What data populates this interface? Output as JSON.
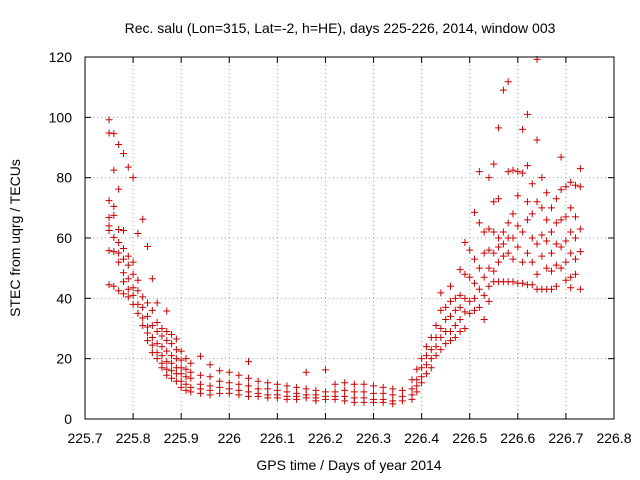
{
  "chart_data": {
    "type": "scatter",
    "title": "Rec. salu (Lon=315, Lat=-2, h=HE), days 225-226, 2014, window 003",
    "xlabel": "GPS time / Days of year 2014",
    "ylabel": "STEC from uqrg / TECUs",
    "xlim": [
      225.7,
      226.8
    ],
    "ylim": [
      0,
      120
    ],
    "xticks": [
      "225.7",
      "225.8",
      "225.9",
      "226",
      "226.1",
      "226.2",
      "226.3",
      "226.4",
      "226.5",
      "226.6",
      "226.7",
      "226.8"
    ],
    "yticks": [
      "0",
      "20",
      "40",
      "60",
      "80",
      "100",
      "120"
    ],
    "grid": true,
    "marker": "plus",
    "color": "#cc0000",
    "points": [
      [
        225.75,
        99.2
      ],
      [
        225.75,
        94.8
      ],
      [
        225.75,
        72.4
      ],
      [
        225.75,
        66.8
      ],
      [
        225.75,
        64.0
      ],
      [
        225.75,
        62.5
      ],
      [
        225.75,
        55.8
      ],
      [
        225.75,
        44.5
      ],
      [
        225.76,
        94.6
      ],
      [
        225.76,
        82.5
      ],
      [
        225.76,
        70.5
      ],
      [
        225.76,
        67.5
      ],
      [
        225.76,
        60.2
      ],
      [
        225.76,
        55.5
      ],
      [
        225.76,
        44.0
      ],
      [
        225.77,
        91.0
      ],
      [
        225.77,
        76.2
      ],
      [
        225.77,
        62.8
      ],
      [
        225.77,
        58.5
      ],
      [
        225.77,
        55.0
      ],
      [
        225.77,
        52.0
      ],
      [
        225.77,
        42.5
      ],
      [
        225.78,
        88.0
      ],
      [
        225.78,
        62.5
      ],
      [
        225.78,
        56.5
      ],
      [
        225.78,
        53.0
      ],
      [
        225.78,
        48.5
      ],
      [
        225.78,
        45.5
      ],
      [
        225.78,
        41.5
      ],
      [
        225.79,
        83.5
      ],
      [
        225.79,
        54.0
      ],
      [
        225.79,
        51.0
      ],
      [
        225.79,
        46.5
      ],
      [
        225.79,
        43.0
      ],
      [
        225.79,
        40.5
      ],
      [
        225.8,
        80.0
      ],
      [
        225.8,
        52.0
      ],
      [
        225.8,
        48.0
      ],
      [
        225.8,
        43.5
      ],
      [
        225.8,
        41.0
      ],
      [
        225.8,
        38.0
      ],
      [
        225.81,
        61.5
      ],
      [
        225.81,
        46.0
      ],
      [
        225.81,
        42.5
      ],
      [
        225.81,
        38.0
      ],
      [
        225.81,
        35.0
      ],
      [
        225.82,
        66.2
      ],
      [
        225.82,
        40.5
      ],
      [
        225.82,
        37.0
      ],
      [
        225.82,
        33.5
      ],
      [
        225.82,
        31.0
      ],
      [
        225.83,
        57.2
      ],
      [
        225.83,
        38.5
      ],
      [
        225.83,
        34.0
      ],
      [
        225.83,
        30.5
      ],
      [
        225.83,
        28.5
      ],
      [
        225.83,
        26.0
      ],
      [
        225.84,
        46.5
      ],
      [
        225.84,
        36.0
      ],
      [
        225.84,
        31.0
      ],
      [
        225.84,
        27.0
      ],
      [
        225.84,
        24.5
      ],
      [
        225.84,
        22.0
      ],
      [
        225.85,
        38.5
      ],
      [
        225.85,
        32.0
      ],
      [
        225.85,
        29.0
      ],
      [
        225.85,
        25.0
      ],
      [
        225.85,
        22.0
      ],
      [
        225.85,
        20.0
      ],
      [
        225.86,
        30.0
      ],
      [
        225.86,
        27.5
      ],
      [
        225.86,
        24.0
      ],
      [
        225.86,
        21.0
      ],
      [
        225.86,
        18.5
      ],
      [
        225.86,
        17.0
      ],
      [
        225.87,
        35.8
      ],
      [
        225.87,
        29.0
      ],
      [
        225.87,
        26.0
      ],
      [
        225.87,
        22.5
      ],
      [
        225.87,
        19.0
      ],
      [
        225.87,
        16.5
      ],
      [
        225.87,
        14.5
      ],
      [
        225.88,
        28.0
      ],
      [
        225.88,
        25.0
      ],
      [
        225.88,
        21.0
      ],
      [
        225.88,
        18.5
      ],
      [
        225.88,
        16.0
      ],
      [
        225.88,
        13.5
      ],
      [
        225.89,
        26.5
      ],
      [
        225.89,
        23.0
      ],
      [
        225.89,
        20.0
      ],
      [
        225.89,
        17.0
      ],
      [
        225.89,
        15.0
      ],
      [
        225.89,
        12.5
      ],
      [
        225.9,
        22.5
      ],
      [
        225.9,
        19.5
      ],
      [
        225.9,
        17.0
      ],
      [
        225.9,
        15.0
      ],
      [
        225.9,
        12.5
      ],
      [
        225.9,
        10.5
      ],
      [
        225.91,
        20.0
      ],
      [
        225.91,
        16.5
      ],
      [
        225.91,
        14.0
      ],
      [
        225.91,
        11.5
      ],
      [
        225.91,
        9.5
      ],
      [
        225.92,
        18.5
      ],
      [
        225.92,
        15.5
      ],
      [
        225.92,
        13.5
      ],
      [
        225.92,
        10.5
      ],
      [
        225.92,
        9.0
      ],
      [
        225.94,
        20.8
      ],
      [
        225.94,
        14.5
      ],
      [
        225.94,
        11.5
      ],
      [
        225.94,
        10.0
      ],
      [
        225.94,
        8.5
      ],
      [
        225.96,
        18.0
      ],
      [
        225.96,
        14.0
      ],
      [
        225.96,
        11.0
      ],
      [
        225.96,
        9.5
      ],
      [
        225.96,
        8.0
      ],
      [
        225.98,
        16.0
      ],
      [
        225.98,
        12.5
      ],
      [
        225.98,
        10.5
      ],
      [
        225.98,
        8.5
      ],
      [
        226.0,
        15.5
      ],
      [
        226.0,
        12.0
      ],
      [
        226.0,
        10.0
      ],
      [
        226.0,
        8.5
      ],
      [
        226.02,
        14.5
      ],
      [
        226.02,
        11.5
      ],
      [
        226.02,
        9.5
      ],
      [
        226.02,
        8.0
      ],
      [
        226.04,
        19.0
      ],
      [
        226.04,
        13.5
      ],
      [
        226.04,
        11.0
      ],
      [
        226.04,
        9.0
      ],
      [
        226.04,
        7.5
      ],
      [
        226.06,
        12.5
      ],
      [
        226.06,
        10.0
      ],
      [
        226.06,
        8.5
      ],
      [
        226.06,
        7.5
      ],
      [
        226.08,
        12.0
      ],
      [
        226.08,
        10.0
      ],
      [
        226.08,
        8.0
      ],
      [
        226.08,
        7.0
      ],
      [
        226.1,
        11.5
      ],
      [
        226.1,
        9.5
      ],
      [
        226.1,
        8.0
      ],
      [
        226.1,
        7.0
      ],
      [
        226.12,
        11.0
      ],
      [
        226.12,
        9.0
      ],
      [
        226.12,
        7.5
      ],
      [
        226.12,
        6.5
      ],
      [
        226.14,
        10.5
      ],
      [
        226.14,
        8.5
      ],
      [
        226.14,
        7.5
      ],
      [
        226.14,
        6.5
      ],
      [
        226.16,
        15.5
      ],
      [
        226.16,
        10.0
      ],
      [
        226.16,
        8.0
      ],
      [
        226.16,
        7.0
      ],
      [
        226.18,
        9.5
      ],
      [
        226.18,
        8.0
      ],
      [
        226.18,
        7.0
      ],
      [
        226.18,
        6.0
      ],
      [
        226.2,
        16.3
      ],
      [
        226.2,
        9.0
      ],
      [
        226.2,
        7.5
      ],
      [
        226.2,
        6.5
      ],
      [
        226.22,
        11.5
      ],
      [
        226.22,
        9.0
      ],
      [
        226.22,
        7.5
      ],
      [
        226.22,
        6.5
      ],
      [
        226.24,
        12.0
      ],
      [
        226.24,
        9.5
      ],
      [
        226.24,
        7.5
      ],
      [
        226.24,
        6.0
      ],
      [
        226.26,
        11.5
      ],
      [
        226.26,
        9.0
      ],
      [
        226.26,
        7.0
      ],
      [
        226.26,
        5.5
      ],
      [
        226.28,
        11.5
      ],
      [
        226.28,
        9.0
      ],
      [
        226.28,
        7.0
      ],
      [
        226.28,
        5.5
      ],
      [
        226.3,
        11.0
      ],
      [
        226.3,
        8.5
      ],
      [
        226.3,
        6.5
      ],
      [
        226.3,
        5.5
      ],
      [
        226.32,
        10.5
      ],
      [
        226.32,
        8.5
      ],
      [
        226.32,
        6.5
      ],
      [
        226.32,
        5.5
      ],
      [
        226.34,
        10.0
      ],
      [
        226.34,
        8.0
      ],
      [
        226.34,
        6.0
      ],
      [
        226.34,
        5.0
      ],
      [
        226.36,
        9.5
      ],
      [
        226.36,
        7.5
      ],
      [
        226.36,
        6.0
      ],
      [
        226.38,
        13.0
      ],
      [
        226.38,
        10.0
      ],
      [
        226.38,
        8.0
      ],
      [
        226.38,
        6.5
      ],
      [
        226.39,
        16.5
      ],
      [
        226.39,
        13.0
      ],
      [
        226.39,
        11.0
      ],
      [
        226.39,
        9.0
      ],
      [
        226.4,
        20.0
      ],
      [
        226.4,
        17.0
      ],
      [
        226.4,
        14.0
      ],
      [
        226.4,
        12.0
      ],
      [
        226.41,
        24.0
      ],
      [
        226.41,
        21.0
      ],
      [
        226.41,
        18.0
      ],
      [
        226.41,
        15.0
      ],
      [
        226.42,
        27.0
      ],
      [
        226.42,
        23.0
      ],
      [
        226.42,
        20.0
      ],
      [
        226.42,
        17.0
      ],
      [
        226.43,
        31.0
      ],
      [
        226.43,
        27.0
      ],
      [
        226.43,
        24.0
      ],
      [
        226.43,
        21.0
      ],
      [
        226.44,
        41.8
      ],
      [
        226.44,
        36.0
      ],
      [
        226.44,
        30.0
      ],
      [
        226.44,
        27.0
      ],
      [
        226.44,
        23.0
      ],
      [
        226.45,
        37.0
      ],
      [
        226.45,
        33.0
      ],
      [
        226.45,
        29.0
      ],
      [
        226.45,
        25.0
      ],
      [
        226.46,
        44.0
      ],
      [
        226.46,
        39.0
      ],
      [
        226.46,
        34.0
      ],
      [
        226.46,
        29.0
      ],
      [
        226.46,
        26.0
      ],
      [
        226.47,
        40.0
      ],
      [
        226.47,
        36.0
      ],
      [
        226.47,
        31.0
      ],
      [
        226.47,
        27.0
      ],
      [
        226.48,
        49.5
      ],
      [
        226.48,
        41.0
      ],
      [
        226.48,
        37.0
      ],
      [
        226.48,
        33.0
      ],
      [
        226.48,
        29.0
      ],
      [
        226.49,
        58.5
      ],
      [
        226.49,
        48.0
      ],
      [
        226.49,
        40.0
      ],
      [
        226.49,
        35.5
      ],
      [
        226.49,
        30.0
      ],
      [
        226.5,
        56.0
      ],
      [
        226.5,
        47.0
      ],
      [
        226.5,
        39.0
      ],
      [
        226.5,
        35.0
      ],
      [
        226.51,
        68.5
      ],
      [
        226.51,
        53.0
      ],
      [
        226.51,
        45.0
      ],
      [
        226.51,
        40.0
      ],
      [
        226.51,
        36.0
      ],
      [
        226.52,
        82.0
      ],
      [
        226.52,
        65.0
      ],
      [
        226.52,
        50.0
      ],
      [
        226.52,
        43.0
      ],
      [
        226.52,
        37.0
      ],
      [
        226.53,
        62.0
      ],
      [
        226.53,
        55.0
      ],
      [
        226.53,
        47.0
      ],
      [
        226.53,
        41.0
      ],
      [
        226.53,
        33.0
      ],
      [
        226.54,
        80.0
      ],
      [
        226.54,
        63.0
      ],
      [
        226.54,
        56.0
      ],
      [
        226.54,
        50.0
      ],
      [
        226.54,
        44.0
      ],
      [
        226.54,
        39.0
      ],
      [
        226.55,
        84.5
      ],
      [
        226.55,
        72.0
      ],
      [
        226.55,
        62.0
      ],
      [
        226.55,
        55.0
      ],
      [
        226.55,
        49.0
      ],
      [
        226.55,
        45.5
      ],
      [
        226.56,
        96.5
      ],
      [
        226.56,
        73.0
      ],
      [
        226.56,
        60.0
      ],
      [
        226.56,
        57.0
      ],
      [
        226.56,
        52.0
      ],
      [
        226.56,
        45.5
      ],
      [
        226.57,
        109.0
      ],
      [
        226.57,
        62.0
      ],
      [
        226.57,
        58.0
      ],
      [
        226.57,
        54.0
      ],
      [
        226.57,
        45.5
      ],
      [
        226.58,
        111.8
      ],
      [
        226.58,
        82.0
      ],
      [
        226.58,
        65.0
      ],
      [
        226.58,
        60.0
      ],
      [
        226.58,
        55.0
      ],
      [
        226.58,
        45.5
      ],
      [
        226.59,
        82.5
      ],
      [
        226.59,
        68.0
      ],
      [
        226.59,
        60.0
      ],
      [
        226.59,
        53.0
      ],
      [
        226.59,
        45.5
      ],
      [
        226.6,
        82.0
      ],
      [
        226.6,
        74.0
      ],
      [
        226.6,
        64.0
      ],
      [
        226.6,
        57.0
      ],
      [
        226.6,
        45.0
      ],
      [
        226.61,
        96.0
      ],
      [
        226.61,
        81.5
      ],
      [
        226.61,
        62.0
      ],
      [
        226.61,
        52.0
      ],
      [
        226.61,
        45.0
      ],
      [
        226.62,
        101.0
      ],
      [
        226.62,
        84.0
      ],
      [
        226.62,
        72.0
      ],
      [
        226.62,
        66.0
      ],
      [
        226.62,
        55.0
      ],
      [
        226.62,
        44.5
      ],
      [
        226.63,
        78.0
      ],
      [
        226.63,
        68.0
      ],
      [
        226.63,
        60.0
      ],
      [
        226.63,
        52.0
      ],
      [
        226.63,
        44.5
      ],
      [
        226.64,
        119.2
      ],
      [
        226.64,
        92.5
      ],
      [
        226.64,
        72.0
      ],
      [
        226.64,
        58.0
      ],
      [
        226.64,
        48.0
      ],
      [
        226.64,
        43.0
      ],
      [
        226.65,
        80.0
      ],
      [
        226.65,
        70.0
      ],
      [
        226.65,
        61.0
      ],
      [
        226.65,
        54.0
      ],
      [
        226.65,
        43.0
      ],
      [
        226.66,
        75.0
      ],
      [
        226.66,
        66.0
      ],
      [
        226.66,
        59.0
      ],
      [
        226.66,
        50.0
      ],
      [
        226.66,
        43.0
      ],
      [
        226.67,
        70.0
      ],
      [
        226.67,
        62.0
      ],
      [
        226.67,
        55.0
      ],
      [
        226.67,
        49.0
      ],
      [
        226.67,
        43.0
      ],
      [
        226.68,
        73.0
      ],
      [
        226.68,
        65.0
      ],
      [
        226.68,
        58.0
      ],
      [
        226.68,
        51.0
      ],
      [
        226.68,
        44.0
      ],
      [
        226.69,
        86.8
      ],
      [
        226.69,
        76.0
      ],
      [
        226.69,
        66.0
      ],
      [
        226.69,
        57.0
      ],
      [
        226.69,
        50.0
      ],
      [
        226.7,
        77.0
      ],
      [
        226.7,
        67.0
      ],
      [
        226.7,
        59.0
      ],
      [
        226.7,
        52.0
      ],
      [
        226.7,
        46.0
      ],
      [
        226.71,
        78.5
      ],
      [
        226.71,
        70.0
      ],
      [
        226.71,
        62.0
      ],
      [
        226.71,
        55.0
      ],
      [
        226.71,
        47.0
      ],
      [
        226.71,
        43.5
      ],
      [
        226.72,
        77.5
      ],
      [
        226.72,
        67.0
      ],
      [
        226.72,
        60.0
      ],
      [
        226.72,
        53.0
      ],
      [
        226.72,
        48.0
      ],
      [
        226.73,
        83.0
      ],
      [
        226.73,
        77.0
      ],
      [
        226.73,
        63.0
      ],
      [
        226.73,
        55.5
      ],
      [
        226.73,
        43.0
      ]
    ]
  }
}
